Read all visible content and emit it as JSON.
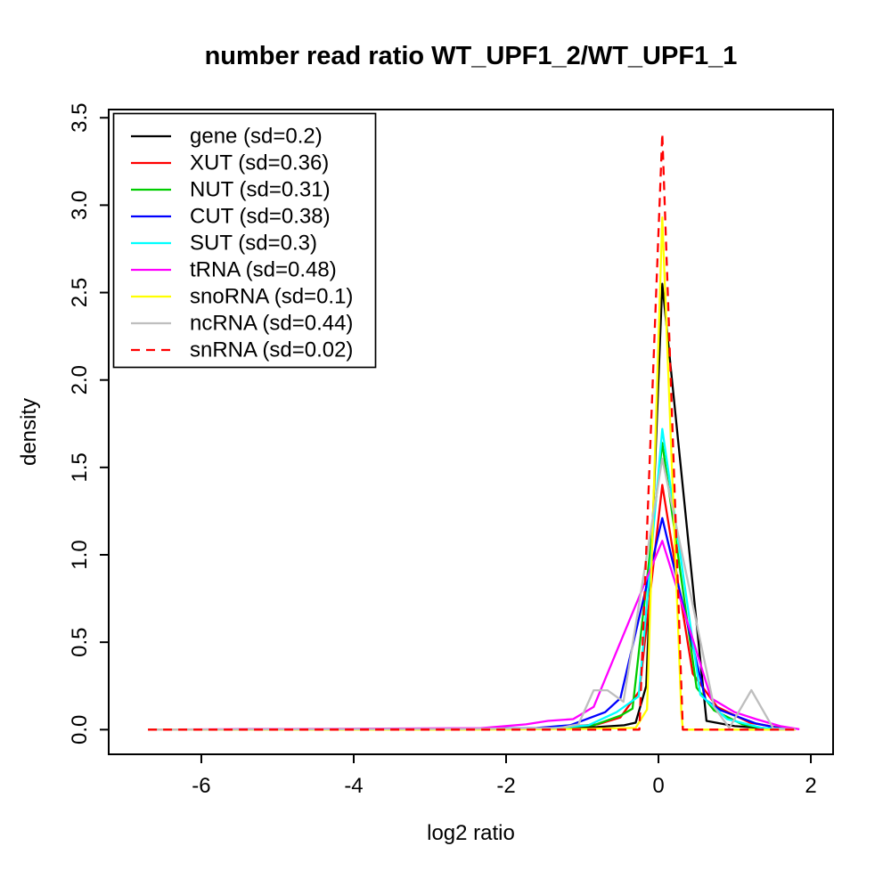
{
  "chart_data": {
    "type": "line",
    "title": "number read ratio WT_UPF1_2/WT_UPF1_1",
    "xlabel": "log2 ratio",
    "ylabel": "density",
    "xlim": [
      -7.216,
      2.292
    ],
    "ylim": [
      -0.141,
      3.547
    ],
    "x_ticks": {
      "values": [
        -6,
        -4,
        -2,
        0,
        2
      ],
      "labels": [
        "-6",
        "-4",
        "-2",
        "0",
        "2"
      ]
    },
    "y_ticks": {
      "values": [
        0,
        0.5,
        1,
        1.5,
        2,
        2.5,
        3,
        3.5
      ],
      "labels": [
        "0.0",
        "0.5",
        "1.0",
        "1.5",
        "2.0",
        "2.5",
        "3.0",
        "3.5"
      ]
    },
    "grid": false,
    "legend_position": "top-left",
    "background": "#FFFFFF",
    "axis_color": "#000000",
    "series": [
      {
        "name": "gene",
        "label": "gene (sd=0.2)",
        "sd": 0.2,
        "color": "#000000",
        "dash": false,
        "points": [
          [
            -6.7,
            0
          ],
          [
            -2.5,
            0.004
          ],
          [
            -1.5,
            0.008
          ],
          [
            -0.8,
            0.015
          ],
          [
            -0.45,
            0.025
          ],
          [
            -0.3,
            0.04
          ],
          [
            -0.16,
            0.25
          ],
          [
            0.05,
            2.55
          ],
          [
            0.63,
            0.05
          ],
          [
            1.0,
            0.02
          ],
          [
            1.4,
            0.008
          ],
          [
            1.8,
            0.002
          ]
        ]
      },
      {
        "name": "XUT",
        "label": "XUT (sd=0.36)",
        "sd": 0.36,
        "color": "#FF0000",
        "dash": false,
        "points": [
          [
            -6.7,
            0
          ],
          [
            -2.5,
            0.004
          ],
          [
            -1.4,
            0.01
          ],
          [
            -0.8,
            0.03
          ],
          [
            -0.5,
            0.07
          ],
          [
            -0.25,
            0.22
          ],
          [
            0.05,
            1.4
          ],
          [
            0.45,
            0.32
          ],
          [
            0.77,
            0.13
          ],
          [
            1.2,
            0.04
          ],
          [
            1.63,
            0.008
          ],
          [
            1.8,
            0.002
          ]
        ]
      },
      {
        "name": "NUT",
        "label": "NUT (sd=0.31)",
        "sd": 0.31,
        "color": "#00CD00",
        "dash": false,
        "points": [
          [
            -6.7,
            0
          ],
          [
            -2.5,
            0.004
          ],
          [
            -1.4,
            0.008
          ],
          [
            -0.85,
            0.025
          ],
          [
            -0.5,
            0.08
          ],
          [
            -0.34,
            0.12
          ],
          [
            0.05,
            1.64
          ],
          [
            0.5,
            0.24
          ],
          [
            0.73,
            0.11
          ],
          [
            1.1,
            0.03
          ],
          [
            1.36,
            0.008
          ],
          [
            1.8,
            0.002
          ]
        ]
      },
      {
        "name": "CUT",
        "label": "CUT (sd=0.38)",
        "sd": 0.38,
        "color": "#0000FF",
        "dash": false,
        "points": [
          [
            -6.7,
            0
          ],
          [
            -2.5,
            0.004
          ],
          [
            -1.6,
            0.01
          ],
          [
            -1.16,
            0.025
          ],
          [
            -0.7,
            0.1
          ],
          [
            -0.5,
            0.18
          ],
          [
            0.05,
            1.21
          ],
          [
            0.62,
            0.17
          ],
          [
            0.82,
            0.11
          ],
          [
            1.28,
            0.035
          ],
          [
            1.59,
            0.008
          ],
          [
            1.8,
            0.002
          ]
        ]
      },
      {
        "name": "SUT",
        "label": "SUT (sd=0.3)",
        "sd": 0.3,
        "color": "#00FFFF",
        "dash": false,
        "points": [
          [
            -6.7,
            0
          ],
          [
            -2.5,
            0.004
          ],
          [
            -1.4,
            0.008
          ],
          [
            -0.92,
            0.025
          ],
          [
            -0.55,
            0.1
          ],
          [
            -0.26,
            0.19
          ],
          [
            0.05,
            1.72
          ],
          [
            0.55,
            0.2
          ],
          [
            0.9,
            0.06
          ],
          [
            1.36,
            0.01
          ],
          [
            1.8,
            0.002
          ]
        ]
      },
      {
        "name": "tRNA",
        "label": "tRNA (sd=0.48)",
        "sd": 0.48,
        "color": "#FF00FF",
        "dash": false,
        "points": [
          [
            -6.7,
            0
          ],
          [
            -2.33,
            0.008
          ],
          [
            -1.74,
            0.03
          ],
          [
            -1.45,
            0.05
          ],
          [
            -1.12,
            0.06
          ],
          [
            -0.85,
            0.13
          ],
          [
            0.05,
            1.08
          ],
          [
            0.69,
            0.18
          ],
          [
            1.0,
            0.1
          ],
          [
            1.28,
            0.06
          ],
          [
            1.6,
            0.02
          ],
          [
            1.85,
            0.002
          ]
        ]
      },
      {
        "name": "snoRNA",
        "label": "snoRNA (sd=0.1)",
        "sd": 0.1,
        "color": "#FFFF00",
        "dash": false,
        "points": [
          [
            -6.7,
            0
          ],
          [
            -2.5,
            0
          ],
          [
            -1.0,
            0.004
          ],
          [
            -0.3,
            0.01
          ],
          [
            -0.15,
            0.115
          ],
          [
            0.05,
            2.93
          ],
          [
            0.3,
            0.1
          ],
          [
            0.32,
            0
          ],
          [
            1.8,
            0
          ]
        ]
      },
      {
        "name": "ncRNA",
        "label": "ncRNA (sd=0.44)",
        "sd": 0.44,
        "color": "#BEBEBE",
        "dash": false,
        "points": [
          [
            -6.7,
            0
          ],
          [
            -2.5,
            0.004
          ],
          [
            -1.3,
            0.01
          ],
          [
            -1.05,
            0.03
          ],
          [
            -0.85,
            0.225
          ],
          [
            -0.67,
            0.225
          ],
          [
            -0.46,
            0.16
          ],
          [
            0.05,
            1.55
          ],
          [
            0.73,
            0.13
          ],
          [
            0.93,
            0.01
          ],
          [
            1.22,
            0.226
          ],
          [
            1.51,
            0.005
          ],
          [
            1.8,
            0.002
          ]
        ]
      },
      {
        "name": "snRNA",
        "label": "snRNA (sd=0.02)",
        "sd": 0.02,
        "color": "#FF0000",
        "dash": true,
        "points": [
          [
            -6.7,
            0
          ],
          [
            -0.25,
            0
          ],
          [
            0.05,
            3.41
          ],
          [
            0.32,
            0
          ],
          [
            1.8,
            0
          ]
        ]
      }
    ]
  }
}
